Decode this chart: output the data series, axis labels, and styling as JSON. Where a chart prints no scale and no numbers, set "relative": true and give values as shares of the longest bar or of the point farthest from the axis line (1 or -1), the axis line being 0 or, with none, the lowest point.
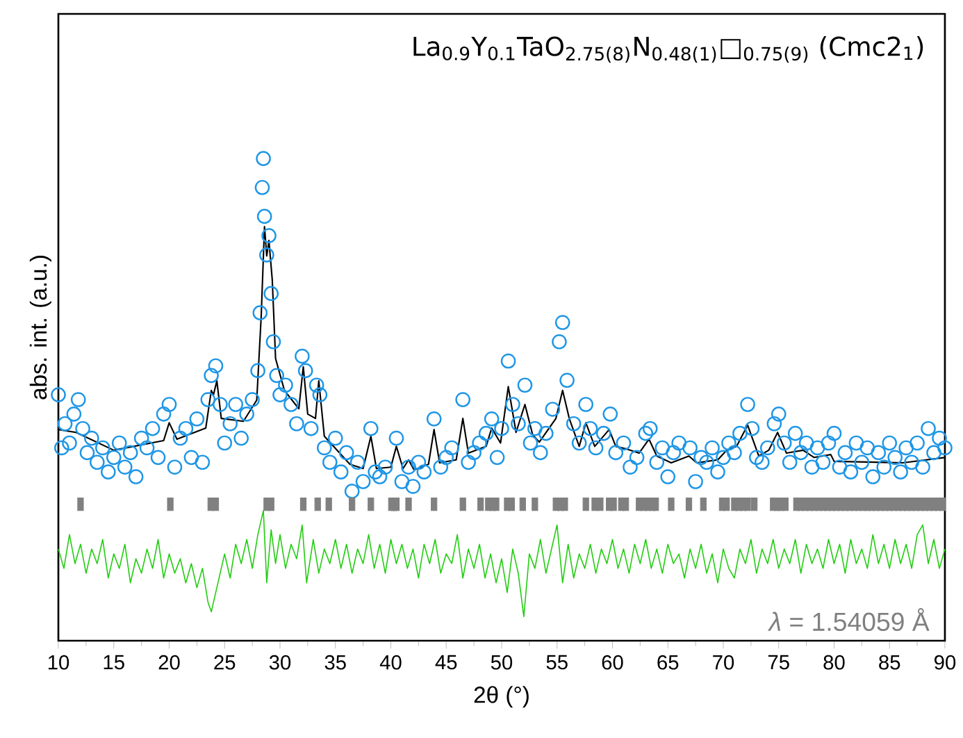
{
  "chart_data": {
    "type": "scatter",
    "title": "La$_{0.9}$Y$_{0.1}$TaO$_{2.75(8)}$N$_{0.48(1)}$□$_{0.75(9)}$ (Cmc2$_{1}$)",
    "xlabel": "2θ (°)",
    "ylabel": "abs. int. (a.u.)",
    "annotations": [
      "*λ* = 1.54059 Å"
    ],
    "relative": true,
    "xlim": [
      10,
      90
    ],
    "xticks": [
      10,
      15,
      20,
      25,
      30,
      35,
      40,
      45,
      50,
      55,
      60,
      65,
      70,
      75,
      80,
      85,
      90
    ],
    "series": [
      {
        "marker": "circle",
        "color": "#1e96e6",
        "x": [
          10.0,
          10.3,
          10.6,
          11.0,
          11.4,
          11.8,
          12.2,
          12.6,
          13.0,
          13.5,
          14.0,
          14.5,
          15.0,
          15.5,
          16.0,
          16.5,
          17.0,
          17.5,
          18.0,
          18.5,
          19.0,
          19.5,
          20.0,
          20.5,
          21.0,
          21.5,
          22.0,
          22.5,
          23.0,
          23.5,
          23.8,
          24.2,
          24.6,
          25.0,
          25.5,
          26.0,
          26.5,
          27.0,
          27.5,
          28.0,
          28.2,
          28.4,
          28.5,
          28.6,
          28.8,
          29.0,
          29.2,
          29.4,
          29.7,
          30.0,
          30.5,
          31.0,
          31.5,
          32.0,
          32.3,
          32.8,
          33.3,
          33.6,
          34.0,
          34.5,
          35.0,
          35.5,
          36.0,
          36.5,
          37.0,
          37.5,
          38.2,
          38.6,
          39.0,
          39.5,
          40.5,
          41.0,
          41.6,
          42.0,
          42.5,
          43.0,
          43.9,
          44.5,
          45.0,
          45.5,
          46.5,
          47.0,
          47.5,
          48.0,
          48.6,
          49.1,
          49.6,
          50.0,
          50.6,
          51.0,
          51.5,
          52.1,
          52.6,
          53.0,
          53.5,
          54.0,
          54.6,
          55.2,
          55.5,
          55.9,
          56.5,
          57.0,
          57.6,
          58.0,
          58.5,
          59.2,
          59.8,
          60.3,
          61.0,
          61.6,
          62.2,
          63.0,
          63.4,
          64.0,
          64.5,
          65.0,
          65.5,
          66.0,
          67.0,
          67.5,
          68.0,
          68.5,
          69.0,
          69.5,
          70.0,
          70.5,
          71.0,
          71.5,
          72.2,
          72.6,
          73.0,
          73.5,
          74.0,
          74.6,
          75.0,
          75.5,
          76.0,
          76.5,
          77.0,
          77.5,
          78.0,
          78.5,
          79.0,
          79.5,
          80.0,
          80.5,
          81.0,
          81.5,
          82.0,
          82.5,
          83.0,
          83.5,
          84.0,
          84.5,
          85.0,
          85.5,
          86.0,
          86.5,
          87.0,
          87.5,
          88.0,
          88.5,
          89.0,
          89.5,
          90.0
        ],
        "values": [
          0.51,
          0.4,
          0.45,
          0.41,
          0.47,
          0.5,
          0.44,
          0.39,
          0.42,
          0.37,
          0.4,
          0.35,
          0.38,
          0.41,
          0.36,
          0.39,
          0.34,
          0.42,
          0.4,
          0.44,
          0.38,
          0.47,
          0.49,
          0.36,
          0.42,
          0.44,
          0.38,
          0.46,
          0.37,
          0.5,
          0.55,
          0.57,
          0.49,
          0.41,
          0.45,
          0.49,
          0.42,
          0.47,
          0.5,
          0.56,
          0.68,
          0.94,
          1.0,
          0.88,
          0.8,
          0.84,
          0.72,
          0.62,
          0.55,
          0.51,
          0.53,
          0.49,
          0.45,
          0.59,
          0.56,
          0.44,
          0.53,
          0.51,
          0.4,
          0.37,
          0.42,
          0.35,
          0.39,
          0.31,
          0.37,
          0.33,
          0.44,
          0.35,
          0.34,
          0.36,
          0.42,
          0.33,
          0.36,
          0.32,
          0.37,
          0.35,
          0.46,
          0.36,
          0.38,
          0.4,
          0.5,
          0.37,
          0.39,
          0.41,
          0.43,
          0.46,
          0.38,
          0.44,
          0.58,
          0.49,
          0.45,
          0.53,
          0.41,
          0.44,
          0.39,
          0.43,
          0.48,
          0.62,
          0.66,
          0.54,
          0.45,
          0.41,
          0.49,
          0.44,
          0.4,
          0.43,
          0.47,
          0.39,
          0.41,
          0.36,
          0.38,
          0.43,
          0.44,
          0.37,
          0.4,
          0.34,
          0.39,
          0.41,
          0.4,
          0.33,
          0.38,
          0.37,
          0.4,
          0.35,
          0.38,
          0.41,
          0.39,
          0.43,
          0.49,
          0.44,
          0.38,
          0.37,
          0.4,
          0.45,
          0.47,
          0.41,
          0.37,
          0.43,
          0.39,
          0.41,
          0.36,
          0.4,
          0.37,
          0.41,
          0.43,
          0.36,
          0.39,
          0.35,
          0.41,
          0.37,
          0.4,
          0.34,
          0.39,
          0.36,
          0.41,
          0.38,
          0.35,
          0.4,
          0.37,
          0.41,
          0.36,
          0.44,
          0.39,
          0.42,
          0.4
        ]
      },
      {
        "type": "line",
        "color": "#000000",
        "x": [
          10.0,
          11.6,
          15.0,
          19.5,
          20.0,
          20.7,
          23.3,
          23.8,
          24.0,
          24.3,
          24.7,
          26.7,
          27.9,
          28.3,
          28.6,
          28.8,
          29.0,
          29.3,
          29.6,
          30.4,
          31.7,
          32.1,
          32.5,
          33.2,
          33.5,
          34.0,
          36.3,
          37.5,
          38.2,
          38.7,
          40.0,
          40.5,
          41.1,
          41.6,
          42.1,
          43.4,
          43.9,
          44.4,
          45.9,
          46.5,
          47.0,
          48.6,
          49.1,
          49.9,
          50.6,
          51.3,
          52.1,
          52.8,
          53.4,
          54.9,
          55.5,
          56.1,
          57.0,
          57.6,
          58.4,
          59.7,
          60.3,
          61.2,
          62.4,
          63.3,
          64.0,
          65.3,
          66.9,
          67.6,
          69.5,
          70.3,
          71.2,
          72.2,
          73.2,
          74.1,
          74.9,
          75.7,
          77.2,
          78.2,
          79.7,
          80.0,
          86.2,
          90.0
        ],
        "values": [
          0.438,
          0.432,
          0.395,
          0.415,
          0.452,
          0.418,
          0.441,
          0.519,
          0.51,
          0.539,
          0.461,
          0.455,
          0.499,
          0.671,
          0.859,
          0.798,
          0.83,
          0.749,
          0.585,
          0.519,
          0.481,
          0.568,
          0.47,
          0.461,
          0.539,
          0.424,
          0.366,
          0.357,
          0.424,
          0.357,
          0.36,
          0.403,
          0.357,
          0.375,
          0.354,
          0.366,
          0.438,
          0.369,
          0.375,
          0.461,
          0.389,
          0.403,
          0.441,
          0.41,
          0.527,
          0.432,
          0.49,
          0.427,
          0.412,
          0.461,
          0.519,
          0.461,
          0.403,
          0.452,
          0.403,
          0.438,
          0.403,
          0.398,
          0.389,
          0.418,
          0.383,
          0.369,
          0.383,
          0.369,
          0.375,
          0.395,
          0.403,
          0.447,
          0.383,
          0.395,
          0.432,
          0.389,
          0.395,
          0.38,
          0.386,
          0.372,
          0.369,
          0.38
        ]
      },
      {
        "type": "line",
        "color": "#22cc11",
        "x": [
          10,
          10.5,
          11,
          11.5,
          12,
          12.5,
          13,
          13.5,
          14,
          14.5,
          15,
          15.5,
          16,
          16.5,
          17,
          17.5,
          18,
          18.5,
          19,
          19.5,
          20,
          20.5,
          21,
          21.5,
          22,
          22.5,
          23,
          23.5,
          23.8,
          24.2,
          24.6,
          25,
          25.5,
          26,
          26.5,
          27,
          27.5,
          28,
          28.5,
          28.8,
          29.2,
          29.6,
          30,
          30.5,
          31,
          31.5,
          32,
          32.4,
          33,
          33.5,
          34,
          34.5,
          35,
          35.5,
          36,
          36.5,
          37,
          37.5,
          38,
          38.5,
          39,
          39.5,
          40,
          40.5,
          41,
          41.5,
          42,
          42.5,
          43,
          43.5,
          44,
          44.5,
          45,
          45.5,
          46,
          46.5,
          47,
          47.5,
          48,
          48.5,
          49,
          49.5,
          50,
          50.5,
          51,
          51.5,
          52,
          52.5,
          53,
          53.5,
          54,
          54.5,
          55,
          55.5,
          56,
          56.5,
          57,
          57.5,
          58,
          58.5,
          59,
          59.5,
          60,
          60.5,
          61,
          61.5,
          62,
          62.5,
          63,
          63.5,
          64,
          64.5,
          65,
          65.5,
          66,
          66.5,
          67,
          67.5,
          68,
          68.5,
          69,
          69.5,
          70,
          70.5,
          71,
          71.5,
          72,
          72.5,
          73,
          73.5,
          74,
          74.5,
          75,
          75.5,
          76,
          76.5,
          77,
          77.5,
          78,
          78.5,
          79,
          79.5,
          80,
          80.5,
          81,
          81.5,
          82,
          82.5,
          83,
          83.5,
          84,
          84.5,
          85,
          85.5,
          86,
          86.5,
          87,
          87.5,
          88,
          88.5,
          89,
          89.5,
          90
        ],
        "values": [
          0.19,
          0.15,
          0.22,
          0.16,
          0.2,
          0.14,
          0.19,
          0.16,
          0.21,
          0.13,
          0.18,
          0.15,
          0.2,
          0.12,
          0.17,
          0.14,
          0.19,
          0.15,
          0.21,
          0.13,
          0.18,
          0.14,
          0.17,
          0.12,
          0.16,
          0.11,
          0.15,
          0.08,
          0.06,
          0.1,
          0.14,
          0.18,
          0.13,
          0.2,
          0.16,
          0.21,
          0.15,
          0.22,
          0.27,
          0.12,
          0.23,
          0.16,
          0.22,
          0.15,
          0.2,
          0.17,
          0.24,
          0.12,
          0.21,
          0.14,
          0.19,
          0.16,
          0.21,
          0.15,
          0.2,
          0.14,
          0.19,
          0.16,
          0.22,
          0.15,
          0.2,
          0.14,
          0.21,
          0.16,
          0.2,
          0.15,
          0.19,
          0.13,
          0.2,
          0.16,
          0.21,
          0.14,
          0.18,
          0.16,
          0.22,
          0.13,
          0.19,
          0.15,
          0.2,
          0.13,
          0.18,
          0.12,
          0.17,
          0.1,
          0.19,
          0.14,
          0.05,
          0.18,
          0.15,
          0.21,
          0.14,
          0.19,
          0.24,
          0.12,
          0.2,
          0.13,
          0.18,
          0.15,
          0.2,
          0.14,
          0.19,
          0.16,
          0.21,
          0.15,
          0.19,
          0.14,
          0.2,
          0.16,
          0.21,
          0.15,
          0.19,
          0.14,
          0.2,
          0.16,
          0.18,
          0.13,
          0.19,
          0.15,
          0.2,
          0.14,
          0.18,
          0.12,
          0.19,
          0.15,
          0.13,
          0.19,
          0.16,
          0.21,
          0.14,
          0.19,
          0.16,
          0.21,
          0.15,
          0.19,
          0.16,
          0.21,
          0.14,
          0.2,
          0.16,
          0.19,
          0.15,
          0.21,
          0.16,
          0.2,
          0.14,
          0.21,
          0.16,
          0.19,
          0.15,
          0.22,
          0.16,
          0.2,
          0.15,
          0.21,
          0.16,
          0.2,
          0.15,
          0.22,
          0.24,
          0.16,
          0.21,
          0.15,
          0.19
        ]
      },
      {
        "type": "scatter",
        "marker": "square",
        "color": "#808080",
        "x": [
          12.0,
          20.1,
          23.75,
          24.2,
          28.8,
          29.2,
          32.1,
          33.4,
          34.4,
          36.5,
          38.2,
          40.05,
          40.3,
          40.5,
          41.6,
          43.9,
          46.5,
          48.1,
          48.8,
          49.2,
          49.5,
          50.5,
          50.9,
          51.9,
          53.0,
          54.9,
          55.3,
          55.7,
          57.6,
          58.4,
          58.9,
          59.7,
          60.1,
          60.8,
          61.2,
          62.4,
          62.8,
          63.2,
          63.6,
          63.9,
          65.3,
          66.9,
          68.2,
          69.9,
          70.3,
          71.0,
          71.4,
          71.8,
          72.2,
          72.8,
          74.5,
          74.9,
          75.2,
          75.6,
          76.6,
          77.0,
          77.4,
          77.8,
          78.2,
          78.6,
          79.0,
          79.4,
          79.8,
          80.2,
          80.6,
          81.0,
          81.4,
          81.8,
          82.2,
          82.6,
          83.0,
          83.4,
          83.8,
          84.2,
          84.6,
          85.0,
          85.4,
          85.8,
          86.2,
          86.6,
          87.0,
          87.4,
          87.8,
          88.2,
          88.6,
          89.0,
          89.4,
          89.8
        ],
        "values": [
          0.283,
          0.283,
          0.283,
          0.283,
          0.283,
          0.283,
          0.283,
          0.283,
          0.283,
          0.283,
          0.283,
          0.283,
          0.283,
          0.283,
          0.283,
          0.283,
          0.283,
          0.283,
          0.283,
          0.283,
          0.283,
          0.283,
          0.283,
          0.283,
          0.283,
          0.283,
          0.283,
          0.283,
          0.283,
          0.283,
          0.283,
          0.283,
          0.283,
          0.283,
          0.283,
          0.283,
          0.283,
          0.283,
          0.283,
          0.283,
          0.283,
          0.283,
          0.283,
          0.283,
          0.283,
          0.283,
          0.283,
          0.283,
          0.283,
          0.283,
          0.283,
          0.283,
          0.283,
          0.283,
          0.283,
          0.283,
          0.283,
          0.283,
          0.283,
          0.283,
          0.283,
          0.283,
          0.283,
          0.283,
          0.283,
          0.283,
          0.283,
          0.283,
          0.283,
          0.283,
          0.283,
          0.283,
          0.283,
          0.283,
          0.283,
          0.283,
          0.283,
          0.283,
          0.283,
          0.283,
          0.283,
          0.283,
          0.283,
          0.283,
          0.283,
          0.283,
          0.283,
          0.283
        ]
      }
    ]
  }
}
